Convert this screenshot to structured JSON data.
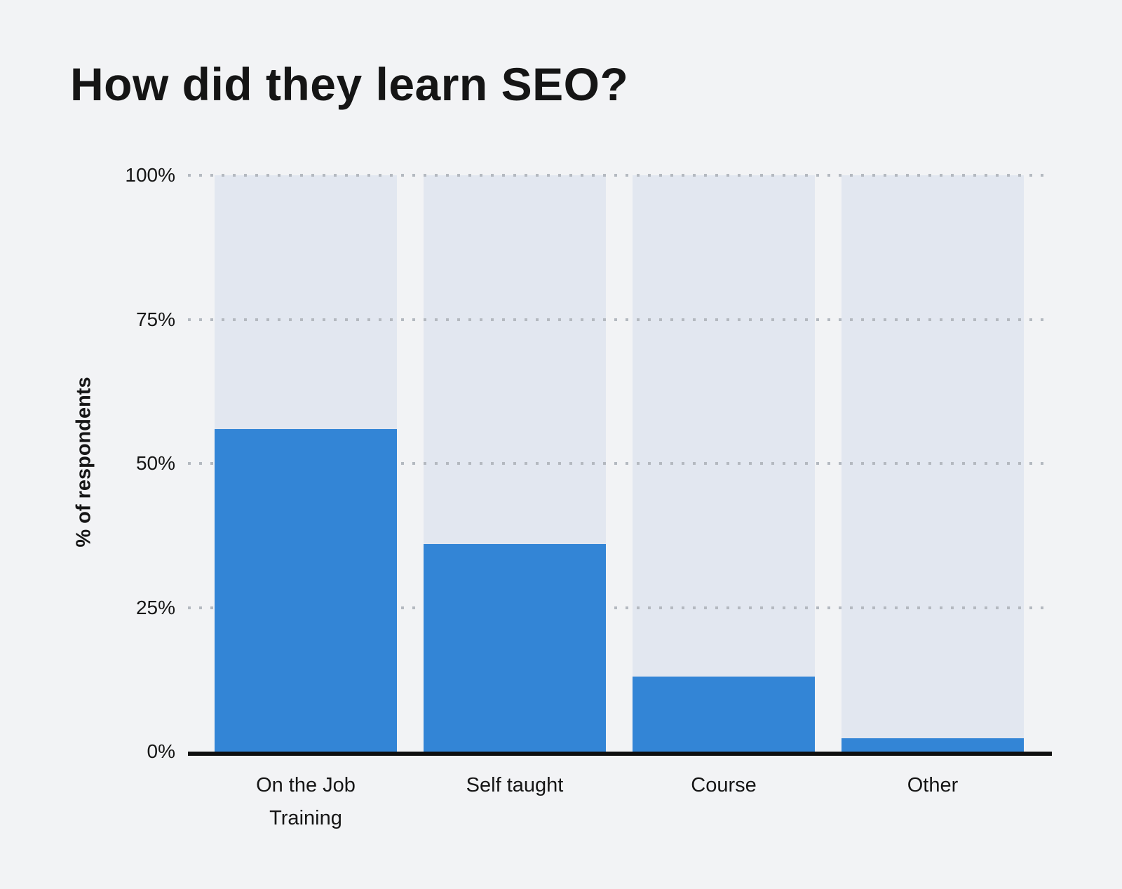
{
  "page": {
    "background": "#f2f3f5"
  },
  "chart_data": {
    "type": "bar",
    "title": "How did they learn SEO?",
    "xlabel": "",
    "ylabel": "% of respondents",
    "categories": [
      "On the Job Training",
      "Self taught",
      "Course",
      "Other"
    ],
    "category_labels": [
      "On the Job\nTraining",
      "Self taught",
      "Course",
      "Other"
    ],
    "values": [
      56,
      36,
      13,
      2.3
    ],
    "unit": "%",
    "ylim": [
      0,
      100
    ],
    "yticks": [
      0,
      25,
      50,
      75,
      100
    ],
    "ytick_labels": [
      "0%",
      "25%",
      "50%",
      "75%",
      "100%"
    ],
    "grid": "horizontal dotted at 25/50/75/100, solid black baseline at 0",
    "legend": "none",
    "track_full_height": true,
    "colors": {
      "bar_fill": "#3385d6",
      "bar_track": "#e2e7f0",
      "gridline": "#b4b9c0",
      "axis": "#0f0f0f",
      "text": "#161616",
      "background": "#f2f3f5"
    }
  }
}
